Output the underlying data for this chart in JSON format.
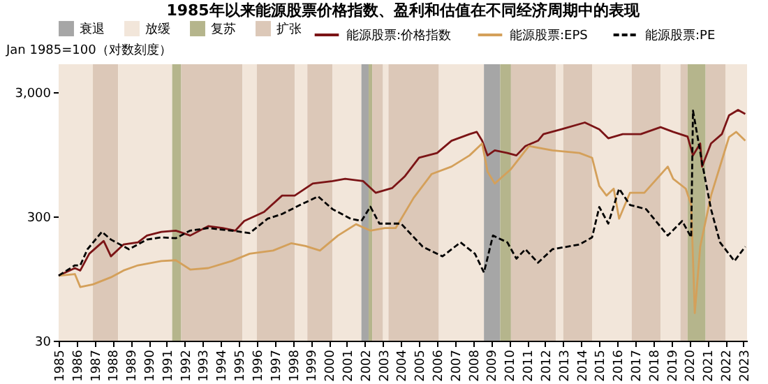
{
  "chart_data": {
    "type": "line",
    "title": "1985年以来能源股票价格指数、盈利和估值在不同经济周期中的表现",
    "ylabel": "Jan 1985=100（对数刻度）",
    "log": "y",
    "legend": "top",
    "grid": false,
    "marker": "none",
    "xlim": [
      1985,
      2023.2
    ],
    "xticks": [
      1985,
      1986,
      1987,
      1988,
      1989,
      1990,
      1991,
      1992,
      1993,
      1994,
      1995,
      1996,
      1997,
      1998,
      1999,
      2000,
      2001,
      2002,
      2003,
      2004,
      2005,
      2006,
      2007,
      2008,
      2009,
      2010,
      2011,
      2012,
      2013,
      2014,
      2015,
      2016,
      2017,
      2018,
      2019,
      2020,
      2021,
      2022,
      2023
    ],
    "ylim": [
      30,
      5000
    ],
    "yticks": [
      30,
      300,
      {
        "value": 3000,
        "label": "3,000"
      }
    ],
    "bands": [
      {
        "axis": "x",
        "from": 1985,
        "to": 1986.9,
        "label": "放缓",
        "color": "#f2e6da"
      },
      {
        "axis": "x",
        "from": 1986.9,
        "to": 1988.3,
        "label": "扩张",
        "color": "#dcc8b8"
      },
      {
        "axis": "x",
        "from": 1988.3,
        "to": 1991.3,
        "color": "#f2e6da"
      },
      {
        "axis": "x",
        "from": 1991.3,
        "to": 1991.8,
        "label": "复苏",
        "color": "#b5b58c"
      },
      {
        "axis": "x",
        "from": 1991.8,
        "to": 1995.2,
        "color": "#dcc8b8"
      },
      {
        "axis": "x",
        "from": 1995.2,
        "to": 1996.0,
        "color": "#f2e6da"
      },
      {
        "axis": "x",
        "from": 1996.0,
        "to": 1998.1,
        "color": "#dcc8b8"
      },
      {
        "axis": "x",
        "from": 1998.1,
        "to": 1998.8,
        "color": "#f2e6da"
      },
      {
        "axis": "x",
        "from": 1998.8,
        "to": 2000.2,
        "color": "#dcc8b8"
      },
      {
        "axis": "x",
        "from": 2000.2,
        "to": 2001.8,
        "color": "#f2e6da"
      },
      {
        "axis": "x",
        "from": 2001.8,
        "to": 2002.2,
        "label": "衰退",
        "color": "#a6a6a6"
      },
      {
        "axis": "x",
        "from": 2002.2,
        "to": 2002.4,
        "color": "#b5b58c"
      },
      {
        "axis": "x",
        "from": 2002.4,
        "to": 2003.0,
        "color": "#dcc8b8"
      },
      {
        "axis": "x",
        "from": 2003.0,
        "to": 2003.3,
        "color": "#f2e6da"
      },
      {
        "axis": "x",
        "from": 2003.3,
        "to": 2006.1,
        "color": "#dcc8b8"
      },
      {
        "axis": "x",
        "from": 2006.1,
        "to": 2008.6,
        "color": "#f2e6da"
      },
      {
        "axis": "x",
        "from": 2008.6,
        "to": 2009.5,
        "color": "#a6a6a6"
      },
      {
        "axis": "x",
        "from": 2009.5,
        "to": 2010.1,
        "color": "#b5b58c"
      },
      {
        "axis": "x",
        "from": 2010.1,
        "to": 2012.6,
        "color": "#dcc8b8"
      },
      {
        "axis": "x",
        "from": 2012.6,
        "to": 2013.0,
        "color": "#f2e6da"
      },
      {
        "axis": "x",
        "from": 2013.0,
        "to": 2014.6,
        "color": "#dcc8b8"
      },
      {
        "axis": "x",
        "from": 2014.6,
        "to": 2016.8,
        "color": "#f2e6da"
      },
      {
        "axis": "x",
        "from": 2016.8,
        "to": 2018.4,
        "color": "#dcc8b8"
      },
      {
        "axis": "x",
        "from": 2018.4,
        "to": 2019.5,
        "color": "#f2e6da"
      },
      {
        "axis": "x",
        "from": 2019.5,
        "to": 2019.9,
        "color": "#dcc8b8"
      },
      {
        "axis": "x",
        "from": 2019.9,
        "to": 2020.9,
        "color": "#b5b58c"
      },
      {
        "axis": "x",
        "from": 2020.9,
        "to": 2022.0,
        "color": "#dcc8b8"
      },
      {
        "axis": "x",
        "from": 2022.0,
        "to": 2023.2,
        "color": "#f2e6da"
      }
    ],
    "series": [
      {
        "name": "能源股票:价格指数",
        "color": "#7b1416",
        "line_style": "solid",
        "x": [
          1985.0,
          1985.9,
          1986.2,
          1986.7,
          1987.5,
          1987.9,
          1988.6,
          1989.4,
          1989.9,
          1990.7,
          1991.5,
          1992.3,
          1993.3,
          1994.1,
          1994.8,
          1995.3,
          1996.4,
          1997.4,
          1998.1,
          1999.1,
          2000.2,
          2000.9,
          2001.9,
          2002.6,
          2003.5,
          2004.2,
          2005.0,
          2006.0,
          2006.8,
          2007.8,
          2008.2,
          2008.5,
          2008.8,
          2009.2,
          2009.9,
          2010.4,
          2010.9,
          2011.6,
          2011.9,
          2012.9,
          2014.2,
          2015.0,
          2015.5,
          2016.3,
          2017.3,
          2018.4,
          2019.1,
          2019.9,
          2020.2,
          2020.6,
          2020.7,
          2021.2,
          2021.8,
          2022.2,
          2022.7,
          2023.1
        ],
        "values": [
          100,
          115,
          110,
          150,
          190,
          143,
          178,
          185,
          210,
          225,
          230,
          210,
          250,
          241,
          230,
          275,
          325,
          440,
          440,
          550,
          575,
          600,
          575,
          463,
          505,
          626,
          886,
          968,
          1214,
          1371,
          1430,
          1214,
          925,
          1015,
          968,
          925,
          1100,
          1214,
          1371,
          1500,
          1700,
          1500,
          1270,
          1371,
          1371,
          1560,
          1430,
          1310,
          925,
          1153,
          752,
          1153,
          1371,
          1942,
          2146,
          1990
        ]
      },
      {
        "name": "能源股票:EPS",
        "color": "#d4a05a",
        "line_style": "solid",
        "x": [
          1985.0,
          1985.9,
          1986.2,
          1986.9,
          1987.9,
          1988.6,
          1989.4,
          1990.7,
          1991.5,
          1992.3,
          1993.3,
          1994.6,
          1995.6,
          1996.9,
          1997.9,
          1998.7,
          1999.5,
          2000.5,
          2001.5,
          2002.3,
          2003.1,
          2003.7,
          2004.7,
          2005.7,
          2006.8,
          2007.8,
          2008.5,
          2008.8,
          2009.2,
          2010.1,
          2011.1,
          2012.4,
          2013.9,
          2014.6,
          2015.0,
          2015.4,
          2015.8,
          2016.1,
          2016.7,
          2017.5,
          2018.8,
          2019.1,
          2019.8,
          2020.1,
          2020.3,
          2020.6,
          2021.2,
          2022.2,
          2022.6,
          2023.1
        ],
        "values": [
          100,
          103,
          81,
          85,
          97,
          110,
          121,
          131,
          133,
          112,
          115,
          131,
          150,
          159,
          182,
          173,
          159,
          210,
          259,
          230,
          241,
          241,
          422,
          656,
          752,
          925,
          1153,
          685,
          550,
          718,
          1100,
          1015,
          968,
          886,
          525,
          440,
          500,
          287,
          463,
          463,
          752,
          600,
          500,
          370,
          50,
          171,
          440,
          1300,
          1430,
          1214
        ]
      },
      {
        "name": "能源股票:PE",
        "color": "#000000",
        "line_style": "dashed",
        "x": [
          1985.0,
          1985.9,
          1986.2,
          1986.6,
          1987.4,
          1987.9,
          1988.9,
          1989.9,
          1990.7,
          1991.5,
          1992.3,
          1993.3,
          1994.6,
          1995.6,
          1996.6,
          1997.4,
          1998.4,
          1999.4,
          2000.2,
          2001.2,
          2001.8,
          2002.3,
          2002.8,
          2004.0,
          2005.2,
          2006.3,
          2007.3,
          2008.1,
          2008.6,
          2009.1,
          2009.9,
          2010.4,
          2010.9,
          2011.6,
          2012.4,
          2013.9,
          2014.6,
          2015.0,
          2015.5,
          2016.1,
          2016.7,
          2017.6,
          2018.8,
          2019.6,
          2020.1,
          2020.2,
          2020.7,
          2021.2,
          2021.7,
          2022.5,
          2023.1
        ],
        "values": [
          100,
          121,
          121,
          163,
          225,
          195,
          163,
          195,
          203,
          200,
          230,
          241,
          230,
          220,
          287,
          313,
          370,
          433,
          342,
          287,
          275,
          358,
          262,
          262,
          171,
          143,
          185,
          150,
          106,
          210,
          185,
          137,
          163,
          127,
          163,
          178,
          203,
          356,
          262,
          500,
          370,
          342,
          210,
          275,
          203,
          2120,
          815,
          342,
          185,
          131,
          171
        ]
      }
    ]
  }
}
